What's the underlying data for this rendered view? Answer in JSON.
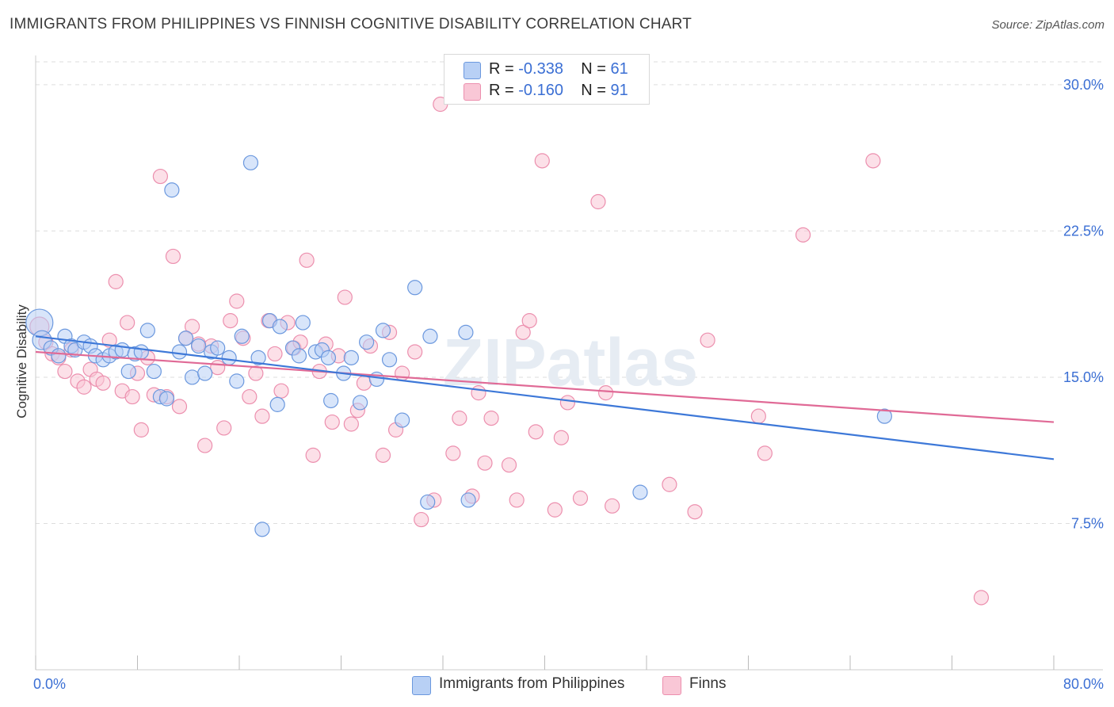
{
  "title": "IMMIGRANTS FROM PHILIPPINES VS FINNISH COGNITIVE DISABILITY CORRELATION CHART",
  "source": "Source: ZipAtlas.com",
  "watermark": "ZIPatlas",
  "legend_top": {
    "rows": [
      {
        "r_label": "R =",
        "r_value": "-0.338",
        "n_label": "N =",
        "n_value": "61"
      },
      {
        "r_label": "R =",
        "r_value": "-0.160",
        "n_label": "N =",
        "n_value": "91"
      }
    ]
  },
  "legend_bottom": [
    "Immigrants from Philippines",
    "Finns"
  ],
  "colors": {
    "blue_fill": "#b8d0f5",
    "blue_stroke": "#6b98de",
    "blue_line": "#3d78d8",
    "pink_fill": "#f9c7d6",
    "pink_stroke": "#ec8fae",
    "pink_line": "#e06a96",
    "axis_text": "#3b6fd4",
    "grid": "#dddddd"
  },
  "chart_data": {
    "type": "scatter",
    "title": "IMMIGRANTS FROM PHILIPPINES VS FINNISH COGNITIVE DISABILITY CORRELATION CHART",
    "xlabel": "",
    "ylabel": "Cognitive Disability",
    "xlim": [
      0,
      80
    ],
    "ylim": [
      0,
      31.5
    ],
    "x_tick_labels": [
      "0.0%",
      "80.0%"
    ],
    "y_ticks": [
      7.5,
      15.0,
      22.5,
      30.0
    ],
    "y_tick_labels": [
      "7.5%",
      "15.0%",
      "22.5%",
      "30.0%"
    ],
    "grid": "horizontal dashed",
    "legend_placement": "bottom-center",
    "series": [
      {
        "name": "Immigrants from Philippines",
        "r": -0.338,
        "n": 61,
        "trend": {
          "x": [
            0,
            80
          ],
          "y": [
            17.1,
            10.8
          ]
        },
        "points": [
          [
            0.3,
            17.8,
            4
          ],
          [
            0.5,
            16.9,
            2
          ],
          [
            1.2,
            16.5,
            1
          ],
          [
            1.8,
            16.1,
            1
          ],
          [
            2.3,
            17.1,
            1
          ],
          [
            2.8,
            16.6,
            1
          ],
          [
            3.1,
            16.4,
            1
          ],
          [
            3.8,
            16.8,
            1
          ],
          [
            4.3,
            16.6,
            1
          ],
          [
            4.7,
            16.1,
            1
          ],
          [
            5.3,
            15.9,
            1
          ],
          [
            5.8,
            16.1,
            1
          ],
          [
            6.3,
            16.3,
            1
          ],
          [
            6.8,
            16.4,
            1
          ],
          [
            7.3,
            15.3,
            1
          ],
          [
            7.8,
            16.2,
            1
          ],
          [
            8.3,
            16.3,
            1
          ],
          [
            8.8,
            17.4,
            1
          ],
          [
            9.3,
            15.3,
            1
          ],
          [
            9.8,
            14.0,
            1
          ],
          [
            10.3,
            13.9,
            1
          ],
          [
            10.7,
            24.6,
            1
          ],
          [
            11.3,
            16.3,
            1
          ],
          [
            11.8,
            17.0,
            1
          ],
          [
            12.3,
            15.0,
            1
          ],
          [
            12.8,
            16.6,
            1
          ],
          [
            13.3,
            15.2,
            1
          ],
          [
            13.8,
            16.3,
            1
          ],
          [
            14.3,
            16.5,
            1
          ],
          [
            15.2,
            16.0,
            1
          ],
          [
            15.8,
            14.8,
            1
          ],
          [
            16.2,
            17.1,
            1
          ],
          [
            16.9,
            26.0,
            1
          ],
          [
            17.5,
            16.0,
            1
          ],
          [
            17.8,
            7.2,
            1
          ],
          [
            18.4,
            17.9,
            1
          ],
          [
            19.0,
            13.6,
            1
          ],
          [
            19.2,
            17.6,
            1
          ],
          [
            20.2,
            16.5,
            1
          ],
          [
            20.7,
            16.1,
            1
          ],
          [
            21.0,
            17.8,
            1
          ],
          [
            22.0,
            16.3,
            1
          ],
          [
            22.5,
            16.4,
            1
          ],
          [
            23.0,
            16.0,
            1
          ],
          [
            23.2,
            13.8,
            1
          ],
          [
            24.2,
            15.2,
            1
          ],
          [
            24.8,
            16.0,
            1
          ],
          [
            25.5,
            13.7,
            1
          ],
          [
            26.0,
            16.8,
            1
          ],
          [
            26.8,
            14.9,
            1
          ],
          [
            27.3,
            17.4,
            1
          ],
          [
            27.8,
            15.9,
            1
          ],
          [
            28.8,
            12.8,
            1
          ],
          [
            29.8,
            19.6,
            1
          ],
          [
            30.8,
            8.6,
            1
          ],
          [
            31.0,
            17.1,
            1
          ],
          [
            33.8,
            17.3,
            1
          ],
          [
            34.0,
            8.7,
            1
          ],
          [
            47.5,
            9.1,
            1
          ],
          [
            66.7,
            13.0,
            1
          ]
        ]
      },
      {
        "name": "Finns",
        "r": -0.16,
        "n": 91,
        "trend": {
          "x": [
            0,
            80
          ],
          "y": [
            16.3,
            12.7
          ]
        },
        "points": [
          [
            0.3,
            17.6,
            2
          ],
          [
            0.8,
            16.8,
            1
          ],
          [
            1.3,
            16.2,
            1
          ],
          [
            1.8,
            16.0,
            1
          ],
          [
            2.3,
            15.3,
            1
          ],
          [
            2.8,
            16.4,
            1
          ],
          [
            3.3,
            14.8,
            1
          ],
          [
            3.8,
            14.5,
            1
          ],
          [
            4.3,
            15.4,
            1
          ],
          [
            4.8,
            14.9,
            1
          ],
          [
            5.3,
            14.7,
            1
          ],
          [
            5.8,
            16.9,
            1
          ],
          [
            6.3,
            19.9,
            1
          ],
          [
            6.8,
            14.3,
            1
          ],
          [
            7.2,
            17.8,
            1
          ],
          [
            7.6,
            14.0,
            1
          ],
          [
            8.0,
            15.2,
            1
          ],
          [
            8.3,
            12.3,
            1
          ],
          [
            8.8,
            16.0,
            1
          ],
          [
            9.3,
            14.1,
            1
          ],
          [
            9.8,
            25.3,
            1
          ],
          [
            10.3,
            14.0,
            1
          ],
          [
            10.8,
            21.2,
            1
          ],
          [
            11.3,
            13.5,
            1
          ],
          [
            11.8,
            17.0,
            1
          ],
          [
            12.3,
            17.6,
            1
          ],
          [
            12.8,
            16.7,
            1
          ],
          [
            13.3,
            11.5,
            1
          ],
          [
            13.8,
            16.6,
            1
          ],
          [
            14.3,
            15.5,
            1
          ],
          [
            14.8,
            12.4,
            1
          ],
          [
            15.3,
            17.9,
            1
          ],
          [
            15.8,
            18.9,
            1
          ],
          [
            16.3,
            17.0,
            1
          ],
          [
            16.8,
            14.0,
            1
          ],
          [
            17.3,
            15.2,
            1
          ],
          [
            17.8,
            13.0,
            1
          ],
          [
            18.3,
            17.9,
            1
          ],
          [
            18.8,
            16.2,
            1
          ],
          [
            19.3,
            14.3,
            1
          ],
          [
            19.8,
            17.8,
            1
          ],
          [
            20.3,
            16.5,
            1
          ],
          [
            20.8,
            16.8,
            1
          ],
          [
            21.3,
            21.0,
            1
          ],
          [
            21.8,
            11.0,
            1
          ],
          [
            22.3,
            15.3,
            1
          ],
          [
            22.8,
            16.7,
            1
          ],
          [
            23.3,
            12.7,
            1
          ],
          [
            23.8,
            16.1,
            1
          ],
          [
            24.3,
            19.1,
            1
          ],
          [
            24.8,
            12.6,
            1
          ],
          [
            25.3,
            13.3,
            1
          ],
          [
            25.8,
            14.7,
            1
          ],
          [
            26.3,
            16.6,
            1
          ],
          [
            27.3,
            11.0,
            1
          ],
          [
            27.8,
            17.3,
            1
          ],
          [
            28.3,
            12.3,
            1
          ],
          [
            28.8,
            15.2,
            1
          ],
          [
            29.8,
            16.3,
            1
          ],
          [
            30.3,
            7.7,
            1
          ],
          [
            31.3,
            8.7,
            1
          ],
          [
            31.8,
            29.0,
            1
          ],
          [
            32.8,
            11.1,
            1
          ],
          [
            33.3,
            12.9,
            1
          ],
          [
            34.3,
            8.9,
            1
          ],
          [
            34.8,
            14.2,
            1
          ],
          [
            35.3,
            10.6,
            1
          ],
          [
            35.8,
            12.9,
            1
          ],
          [
            37.2,
            10.5,
            1
          ],
          [
            37.8,
            8.7,
            1
          ],
          [
            38.3,
            17.3,
            1
          ],
          [
            38.8,
            17.9,
            1
          ],
          [
            39.3,
            12.2,
            1
          ],
          [
            39.8,
            26.1,
            1
          ],
          [
            40.8,
            8.2,
            1
          ],
          [
            41.3,
            11.9,
            1
          ],
          [
            41.8,
            13.7,
            1
          ],
          [
            42.8,
            8.8,
            1
          ],
          [
            44.2,
            24.0,
            1
          ],
          [
            44.8,
            14.2,
            1
          ],
          [
            45.3,
            8.4,
            1
          ],
          [
            49.8,
            9.5,
            1
          ],
          [
            51.8,
            8.1,
            1
          ],
          [
            52.8,
            16.9,
            1
          ],
          [
            56.8,
            13.0,
            1
          ],
          [
            57.3,
            11.1,
            1
          ],
          [
            60.3,
            22.3,
            1
          ],
          [
            65.8,
            26.1,
            1
          ],
          [
            74.3,
            3.7,
            1
          ]
        ]
      }
    ]
  }
}
